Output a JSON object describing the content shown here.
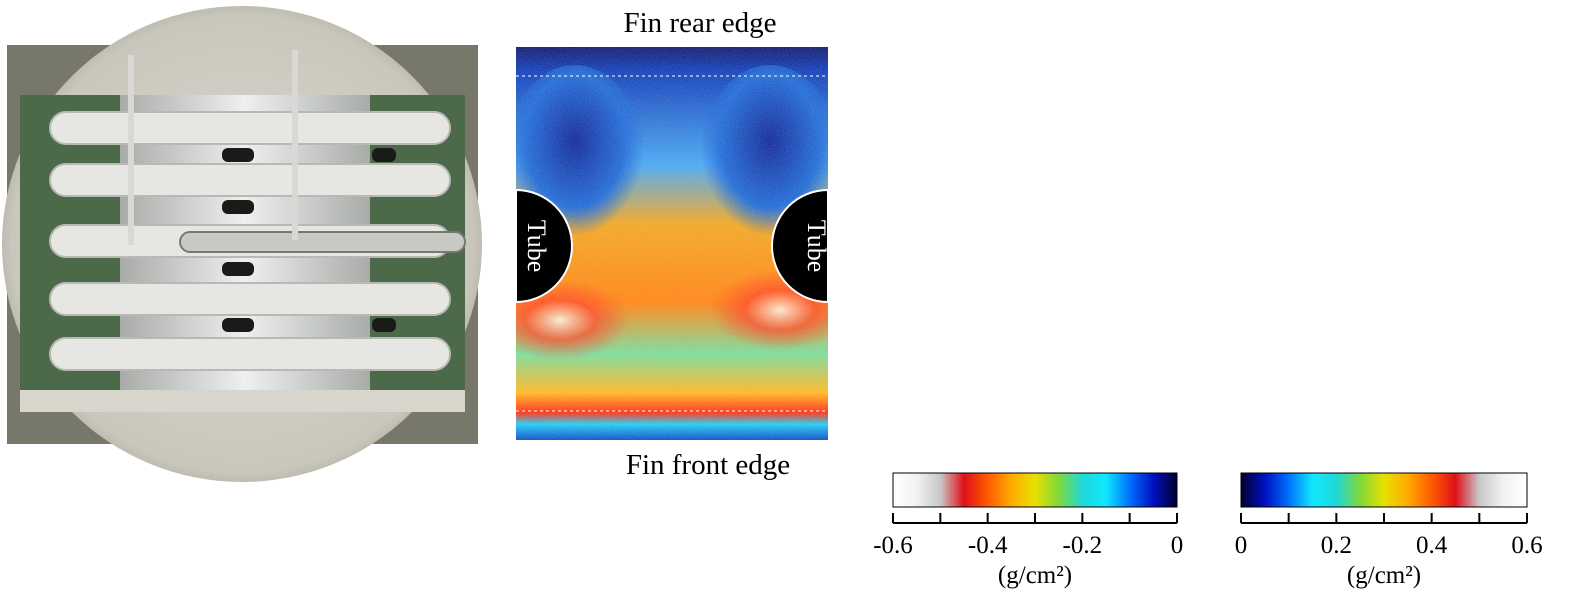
{
  "heatmap": {
    "top_label": "Fin  rear edge",
    "bottom_label": "Fin  front edge",
    "left_tube": "Tube",
    "right_tube": "Tube"
  },
  "colorbars": [
    {
      "lim": [
        -0.6,
        0
      ],
      "ticks": [
        -0.6,
        -0.4,
        -0.2,
        0
      ],
      "minor_ticks": [
        -0.5,
        -0.3,
        -0.1
      ],
      "unit": "(g/cm²)",
      "colors": [
        "#ffffff",
        "#f2f2f2",
        "#c8c8c8",
        "#e0101a",
        "#ff5a00",
        "#ffaa00",
        "#e8e000",
        "#7fd83a",
        "#20d8d8",
        "#10e8ff",
        "#0070ff",
        "#0010c0",
        "#000030"
      ]
    },
    {
      "lim": [
        0,
        0.6
      ],
      "ticks": [
        0,
        0.2,
        0.4,
        0.6
      ],
      "minor_ticks": [
        0.1,
        0.3,
        0.5
      ],
      "unit": "(g/cm²)",
      "colors": [
        "#000030",
        "#0010c0",
        "#0070ff",
        "#10e8ff",
        "#20d8d8",
        "#7fd83a",
        "#e8e000",
        "#ffaa00",
        "#ff5a00",
        "#e0101a",
        "#c8c8c8",
        "#f2f2f2",
        "#ffffff"
      ]
    }
  ]
}
